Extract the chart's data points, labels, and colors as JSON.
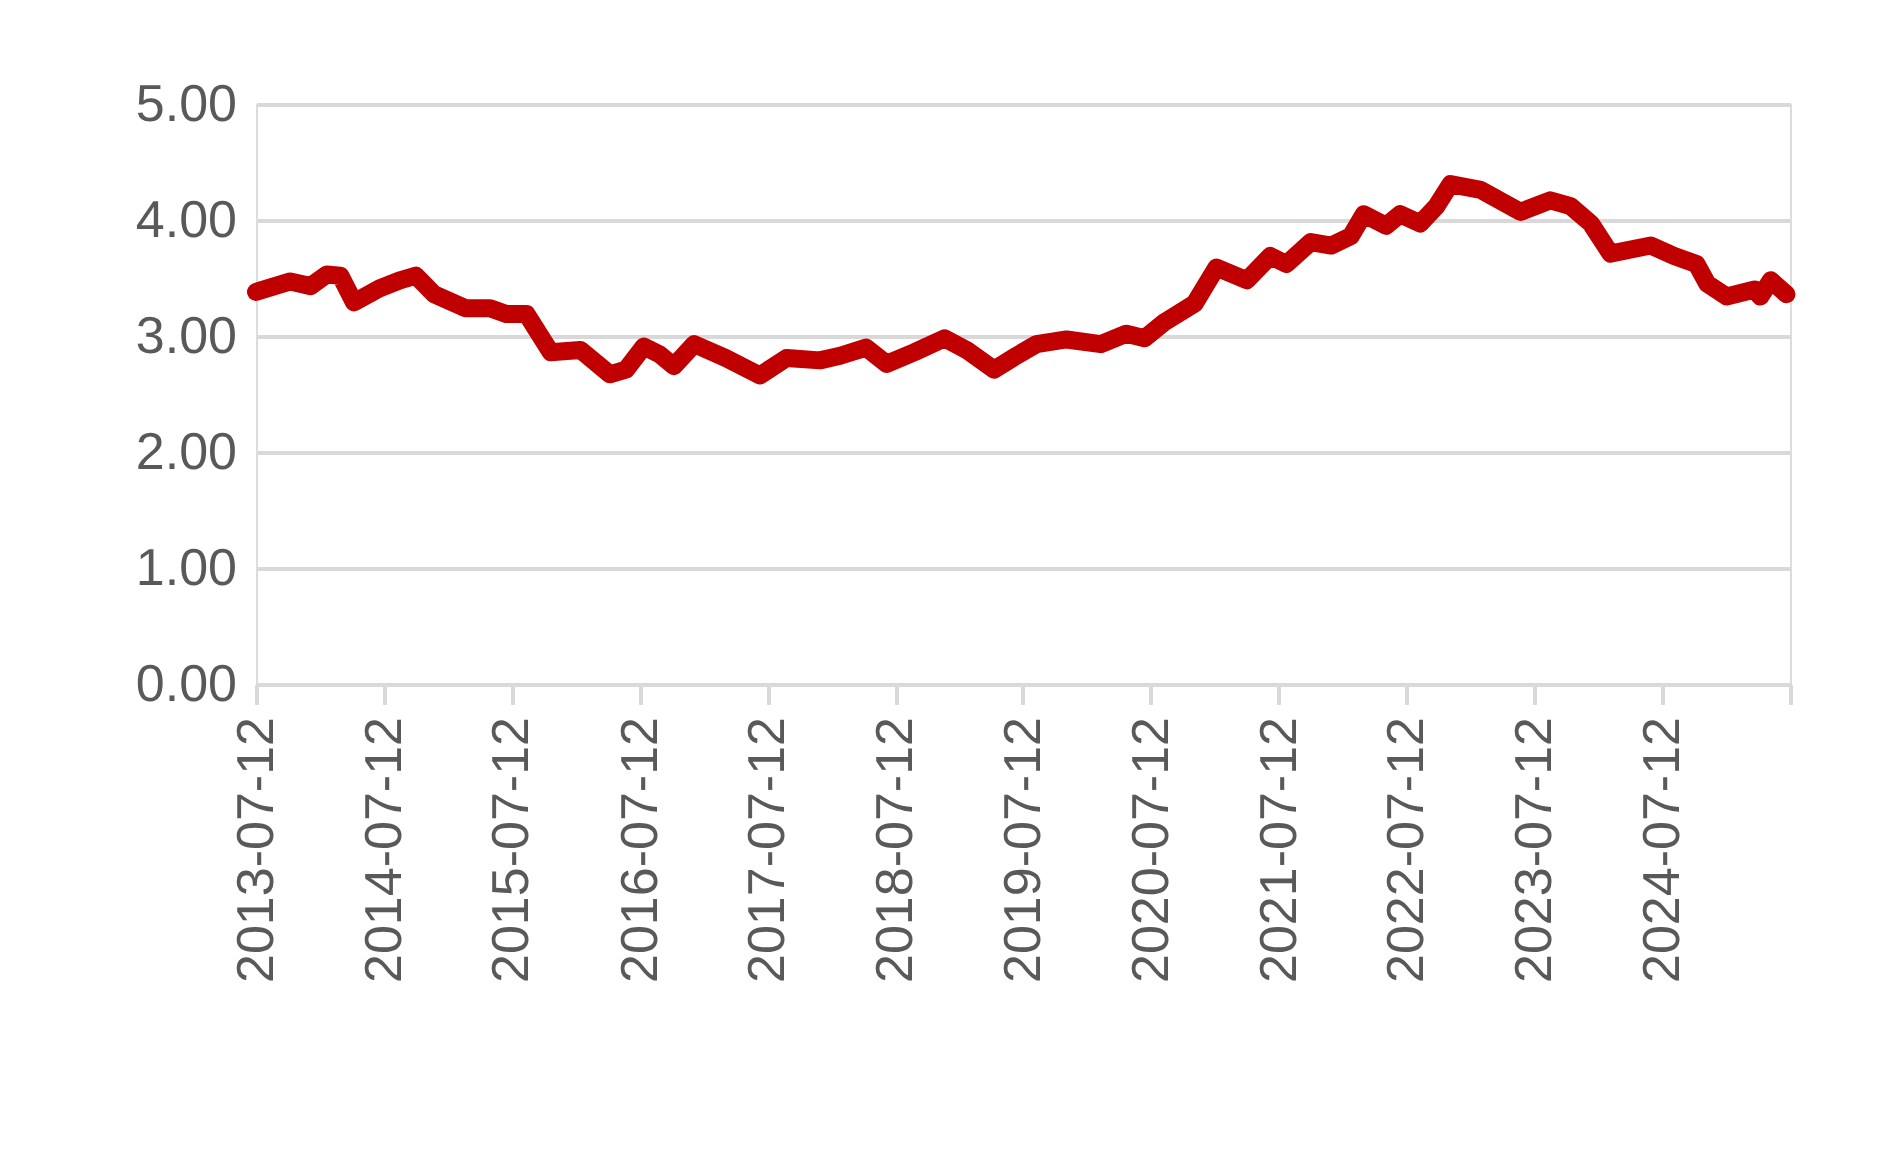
{
  "chart_data": {
    "type": "line",
    "x": [
      "2013-07-12",
      "2013-10-18",
      "2013-12-15",
      "2014-01-30",
      "2014-03-10",
      "2014-04-18",
      "2014-06-30",
      "2014-08-27",
      "2014-10-12",
      "2014-12-03",
      "2015-03-03",
      "2015-05-12",
      "2015-06-27",
      "2015-08-24",
      "2015-11-01",
      "2016-01-25",
      "2016-04-18",
      "2016-06-03",
      "2016-07-24",
      "2016-09-08",
      "2016-10-18",
      "2016-12-15",
      "2017-03-15",
      "2017-06-21",
      "2017-09-05",
      "2017-12-09",
      "2018-02-05",
      "2018-04-20",
      "2018-06-18",
      "2018-09-05",
      "2018-11-30",
      "2019-02-01",
      "2019-04-21",
      "2019-06-24",
      "2019-08-20",
      "2019-11-14",
      "2020-02-20",
      "2020-05-03",
      "2020-06-24",
      "2020-08-20",
      "2020-11-14",
      "2021-01-15",
      "2021-04-12",
      "2021-06-18",
      "2021-08-03",
      "2021-10-12",
      "2021-12-09",
      "2022-02-03",
      "2022-03-12",
      "2022-05-15",
      "2022-06-24",
      "2022-08-21",
      "2022-10-06",
      "2022-11-15",
      "2023-02-09",
      "2023-06-03",
      "2023-08-27",
      "2023-10-24",
      "2023-12-21",
      "2024-02-15",
      "2024-06-09",
      "2024-08-15",
      "2024-10-18",
      "2024-11-18",
      "2025-01-12",
      "2025-04-02",
      "2025-04-18",
      "2025-05-18",
      "2025-07-02"
    ],
    "series": [
      {
        "color": "#c00000",
        "values": [
          3.38,
          3.47,
          3.43,
          3.53,
          3.52,
          3.29,
          3.41,
          3.48,
          3.52,
          3.36,
          3.24,
          3.24,
          3.19,
          3.19,
          2.86,
          2.88,
          2.67,
          2.71,
          2.91,
          2.84,
          2.74,
          2.93,
          2.81,
          2.66,
          2.81,
          2.79,
          2.83,
          2.9,
          2.76,
          2.86,
          2.98,
          2.88,
          2.71,
          2.83,
          2.93,
          2.97,
          2.93,
          3.02,
          2.98,
          3.12,
          3.28,
          3.59,
          3.48,
          3.69,
          3.62,
          3.81,
          3.78,
          3.86,
          4.05,
          3.95,
          4.05,
          3.97,
          4.12,
          4.31,
          4.26,
          4.07,
          4.17,
          4.12,
          3.97,
          3.71,
          3.78,
          3.69,
          3.62,
          3.45,
          3.34,
          3.4,
          3.34,
          3.48,
          3.36
        ]
      }
    ],
    "xlim": [
      "2013-07-12",
      "2025-07-12"
    ],
    "xticks": [
      {
        "value": "2013-07-12",
        "label": "2013-07-12"
      },
      {
        "value": "2014-07-12",
        "label": "2014-07-12"
      },
      {
        "value": "2015-07-12",
        "label": "2015-07-12"
      },
      {
        "value": "2016-07-12",
        "label": "2016-07-12"
      },
      {
        "value": "2017-07-12",
        "label": "2017-07-12"
      },
      {
        "value": "2018-07-12",
        "label": "2018-07-12"
      },
      {
        "value": "2019-07-12",
        "label": "2019-07-12"
      },
      {
        "value": "2020-07-12",
        "label": "2020-07-12"
      },
      {
        "value": "2021-07-12",
        "label": "2021-07-12"
      },
      {
        "value": "2022-07-12",
        "label": "2022-07-12"
      },
      {
        "value": "2023-07-12",
        "label": "2023-07-12"
      },
      {
        "value": "2024-07-12",
        "label": "2024-07-12"
      },
      {
        "value": "2025-07-12",
        "label": null
      }
    ],
    "ylim": [
      0,
      5
    ],
    "yticks": [
      {
        "value": 0,
        "label": "0.00"
      },
      {
        "value": 1,
        "label": "1.00"
      },
      {
        "value": 2,
        "label": "2.00"
      },
      {
        "value": 3,
        "label": "3.00"
      },
      {
        "value": 4,
        "label": "4.00"
      },
      {
        "value": 5,
        "label": "5.00"
      }
    ],
    "grid": "y",
    "legend": false,
    "line_style": "solid"
  }
}
